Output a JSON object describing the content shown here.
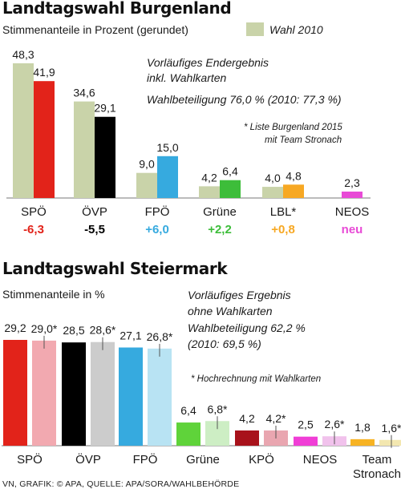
{
  "burgenland": {
    "title": "Landtagswahl Burgenland",
    "subtitle": "Stimmenanteile in Prozent (gerundet)",
    "legend_label": "Wahl 2010",
    "legend_color": "#c9d3a9",
    "note_line1": "Vorläufiges Endergebnis",
    "note_line2": "inkl. Wahlkarten",
    "turnout": "Wahlbeteiligung 76,0 % (2010: 77,3 %)",
    "footnote_line1": "* Liste Burgenland 2015",
    "footnote_line2": "mit Team Stronach"
  },
  "steiermark": {
    "title": "Landtagswahl Steiermark",
    "subtitle": "Stimmenanteile in %",
    "note_line1": "Vorläufiges Ergebnis",
    "note_line2": "ohne Wahlkarten",
    "note_line3": "Wahlbeteiligung 62,2 %",
    "note_line4": "(2010: 69,5 %)",
    "footnote": "* Hochrechnung mit Wahlkarten"
  },
  "source": "VN, GRAFIK: © APA, QUELLE: APA/SORA/WAHLBEHÖRDE",
  "chart_data": [
    {
      "type": "bar",
      "title": "Landtagswahl Burgenland",
      "categories": [
        "SPÖ",
        "ÖVP",
        "FPÖ",
        "Grüne",
        "LBL*",
        "NEOS"
      ],
      "series": [
        {
          "name": "Wahl 2010",
          "values": [
            48.3,
            34.6,
            9.0,
            4.2,
            4.0,
            null
          ],
          "labels": [
            "48,3",
            "34,6",
            "9,0",
            "4,2",
            "4,0",
            ""
          ],
          "color": "#c9d3a9"
        },
        {
          "values": [
            41.9,
            29.1,
            15.0,
            6.4,
            4.8,
            2.3
          ],
          "labels": [
            "41,9",
            "29,1",
            "15,0",
            "6,4",
            "4,8",
            "2,3"
          ],
          "colors": [
            "#e2231a",
            "#000000",
            "#36aadf",
            "#3dbd3a",
            "#f7a823",
            "#e84ad6"
          ]
        }
      ],
      "changes": [
        "-6,3",
        "-5,5",
        "+6,0",
        "+2,2",
        "+0,8",
        "neu"
      ],
      "change_colors": [
        "#e2231a",
        "#000000",
        "#36aadf",
        "#3dbd3a",
        "#f7a823",
        "#e84ad6"
      ],
      "ylim": [
        0,
        50
      ],
      "legend": "top-right",
      "grid": false
    },
    {
      "type": "bar",
      "title": "Landtagswahl Steiermark",
      "categories": [
        "SPÖ",
        "ÖVP",
        "FPÖ",
        "Grüne",
        "KPÖ",
        "NEOS",
        "Team Stronach"
      ],
      "series": [
        {
          "values": [
            29.2,
            28.5,
            27.1,
            6.4,
            4.2,
            2.5,
            1.8
          ],
          "labels": [
            "29,2",
            "28,5",
            "27,1",
            "6,4",
            "4,2",
            "2,5",
            "1,8"
          ],
          "colors": [
            "#e2231a",
            "#000000",
            "#36aadf",
            "#5fd33a",
            "#a8121b",
            "#f03ed6",
            "#f7b323"
          ]
        },
        {
          "values": [
            29.0,
            28.6,
            26.8,
            6.8,
            4.2,
            2.6,
            1.6
          ],
          "labels": [
            "29,0*",
            "28,6*",
            "26,8*",
            "6,8*",
            "4,2*",
            "2,6*",
            "1,6*"
          ],
          "colors": [
            "#f2a9b0",
            "#cccccc",
            "#b8e3f3",
            "#cdeec4",
            "#e9a6b0",
            "#f1c2ec",
            "#f3e7b0"
          ],
          "error_bars": true
        }
      ],
      "ylim": [
        0,
        30
      ],
      "legend": "none",
      "grid": false
    }
  ]
}
